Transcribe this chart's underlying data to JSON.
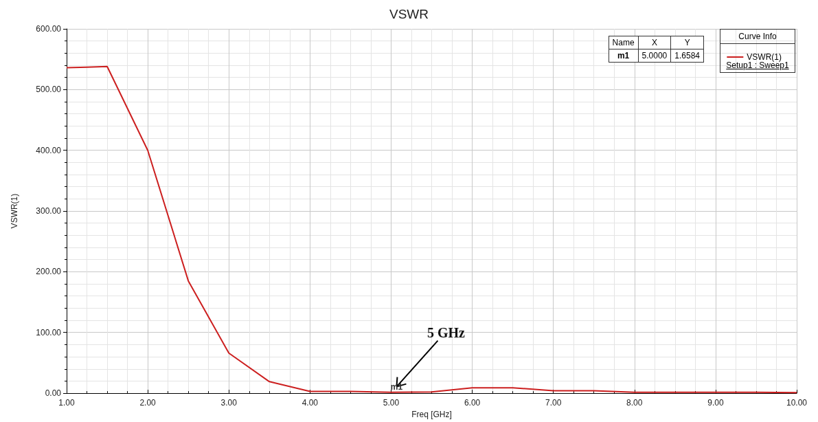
{
  "chart_data": {
    "type": "line",
    "title": "VSWR",
    "xlabel": "Freq [GHz]",
    "ylabel": "VSWR(1)",
    "x": [
      1,
      1.25,
      1.5,
      2,
      2.5,
      3,
      3.5,
      4,
      4.5,
      5,
      5.5,
      6,
      6.5,
      7,
      7.5,
      8,
      8.5,
      9,
      9.5,
      10
    ],
    "series": [
      {
        "name": "VSWR(1)",
        "color": "#cc1f1f",
        "values": [
          536,
          537,
          538,
          400,
          185,
          66,
          19,
          3,
          3,
          1.6584,
          2,
          9,
          9,
          4,
          4,
          1.5,
          1.5,
          1.5,
          1.5,
          1
        ]
      }
    ],
    "xlim": [
      1,
      10
    ],
    "xticks": [
      {
        "value": 1,
        "label": "1.00"
      },
      {
        "value": 2,
        "label": "2.00"
      },
      {
        "value": 3,
        "label": "3.00"
      },
      {
        "value": 4,
        "label": "4.00"
      },
      {
        "value": 5,
        "label": "5.00"
      },
      {
        "value": 6,
        "label": "6.00"
      },
      {
        "value": 7,
        "label": "7.00"
      },
      {
        "value": 8,
        "label": "8.00"
      },
      {
        "value": 9,
        "label": "9.00"
      },
      {
        "value": 10,
        "label": "10.00"
      }
    ],
    "ylim": [
      0,
      600
    ],
    "yticks": [
      {
        "value": 0,
        "label": "0.00"
      },
      {
        "value": 100,
        "label": "100.00"
      },
      {
        "value": 200,
        "label": "200.00"
      },
      {
        "value": 300,
        "label": "300.00"
      },
      {
        "value": 400,
        "label": "400.00"
      },
      {
        "value": 500,
        "label": "500.00"
      },
      {
        "value": 600,
        "label": "600.00"
      }
    ],
    "grid": true,
    "legend": "top right",
    "marker": "none",
    "line_style": "solid",
    "legend_title": "Curve Info",
    "annotations": [
      "Name",
      "X",
      "Y",
      "m1",
      "5.0000",
      "1.6584",
      "Setup1 : Sweep1",
      "5 GHz",
      {
        "text": "m1",
        "x": 5,
        "y": 1.6584
      }
    ]
  }
}
